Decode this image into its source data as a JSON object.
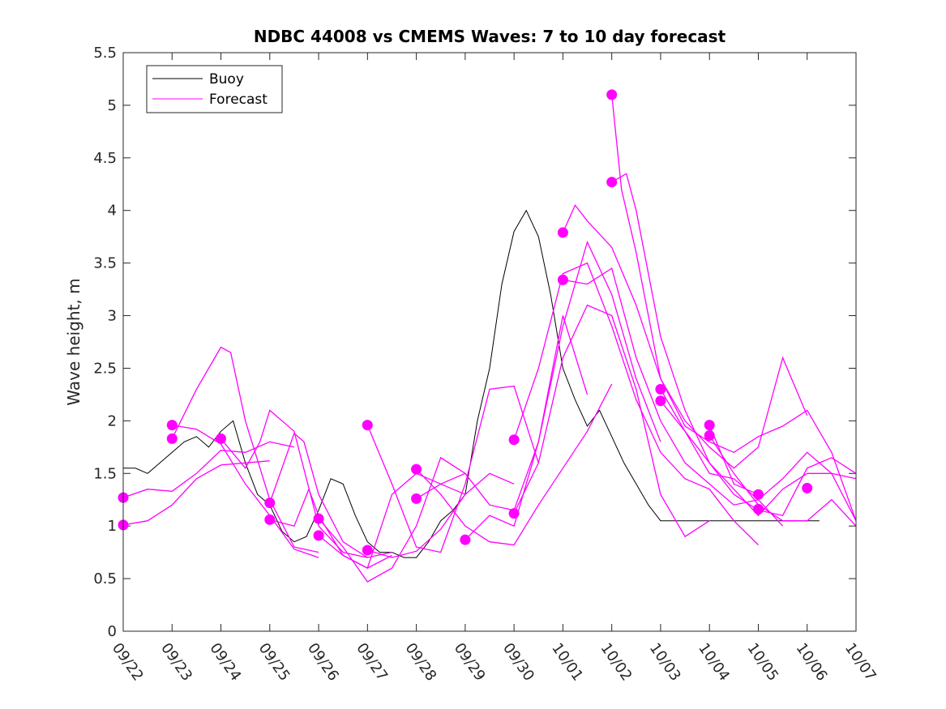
{
  "chart_data": {
    "type": "line",
    "title": "NDBC 44008 vs CMEMS Waves: 7 to 10 day forecast",
    "xlabel": "",
    "ylabel": "Wave height, m",
    "xlim": [
      0,
      15
    ],
    "ylim": [
      0,
      5.5
    ],
    "yticks": [
      0,
      0.5,
      1,
      1.5,
      2,
      2.5,
      3,
      3.5,
      4,
      4.5,
      5,
      5.5
    ],
    "ytick_labels": [
      "0",
      "0.5",
      "1",
      "1.5",
      "2",
      "2.5",
      "3",
      "3.5",
      "4",
      "4.5",
      "5",
      "5.5"
    ],
    "xtick_labels": [
      "09/22",
      "09/23",
      "09/24",
      "09/25",
      "09/26",
      "09/27",
      "09/28",
      "09/29",
      "09/30",
      "10/01",
      "10/02",
      "10/03",
      "10/04",
      "10/05",
      "10/06",
      "10/07"
    ],
    "legend": {
      "position": "top-left",
      "entries": [
        {
          "label": "Buoy",
          "color": "#000000"
        },
        {
          "label": "Forecast",
          "color": "#ff00ff"
        }
      ]
    },
    "buoy": {
      "name": "Buoy",
      "color": "#000000",
      "x": [
        0,
        0.25,
        0.5,
        0.75,
        1,
        1.25,
        1.5,
        1.75,
        2,
        2.25,
        2.5,
        2.75,
        3,
        3.25,
        3.5,
        3.75,
        4,
        4.25,
        4.5,
        4.75,
        5,
        5.25,
        5.5,
        5.75,
        6,
        6.25,
        6.5,
        6.75,
        7,
        7.25,
        7.5,
        7.75,
        8,
        8.25,
        8.5,
        8.75,
        9,
        9.25,
        9.5,
        9.75,
        10,
        10.25,
        10.5,
        10.75,
        11,
        11.25,
        11.5,
        11.75,
        12,
        12.25,
        12.5,
        12.75,
        13,
        13.25,
        13.5,
        13.75,
        14,
        14.25
      ],
      "values": [
        1.55,
        1.55,
        1.5,
        1.6,
        1.7,
        1.8,
        1.85,
        1.75,
        1.9,
        2.0,
        1.6,
        1.3,
        1.2,
        0.95,
        0.85,
        0.9,
        1.15,
        1.45,
        1.4,
        1.1,
        0.85,
        0.75,
        0.75,
        0.7,
        0.7,
        0.85,
        1.05,
        1.15,
        1.3,
        2.0,
        2.5,
        3.3,
        3.8,
        4.0,
        3.75,
        3.2,
        2.5,
        2.2,
        1.95,
        2.1,
        1.85,
        1.6,
        1.4,
        1.2,
        1.05,
        1.05,
        1.05,
        1.05,
        1.05,
        1.05,
        1.05,
        1.05,
        1.05,
        1.05,
        1.05,
        1.05,
        1.05,
        1.05
      ]
    },
    "forecast_series": [
      {
        "name": "Forecast",
        "marker": [
          0,
          1.01
        ],
        "x": [
          0,
          0.5,
          1,
          1.5,
          2,
          2.5,
          3
        ],
        "values": [
          1.01,
          1.05,
          1.2,
          1.45,
          1.58,
          1.6,
          1.62
        ]
      },
      {
        "name": "Forecast",
        "marker": [
          0,
          1.27
        ],
        "x": [
          0,
          0.5,
          1,
          1.5,
          2,
          2.5,
          3,
          3.5
        ],
        "values": [
          1.27,
          1.35,
          1.33,
          1.5,
          1.72,
          1.7,
          1.8,
          1.75
        ]
      },
      {
        "name": "Forecast",
        "marker": [
          1,
          1.83
        ],
        "x": [
          1,
          1.5,
          2,
          2.2,
          2.5,
          3,
          3.5,
          4
        ],
        "values": [
          1.83,
          2.3,
          2.7,
          2.65,
          2.0,
          1.25,
          0.8,
          0.75
        ]
      },
      {
        "name": "Forecast",
        "marker": [
          1,
          1.96
        ],
        "x": [
          1,
          1.5,
          2,
          2.5,
          3,
          3.5,
          4
        ],
        "values": [
          1.96,
          1.92,
          1.78,
          1.4,
          1.1,
          0.78,
          0.7
        ]
      },
      {
        "name": "Forecast",
        "marker": [
          2,
          1.83
        ],
        "x": [
          2,
          2.5,
          2.8,
          3,
          3.5,
          4,
          4.5,
          5
        ],
        "values": [
          1.83,
          1.55,
          1.8,
          2.1,
          1.9,
          1.0,
          0.75,
          0.7
        ]
      },
      {
        "name": "Forecast",
        "marker": [
          3,
          1.06
        ],
        "x": [
          3,
          3.5,
          3.8,
          4,
          4.5,
          5,
          5.5
        ],
        "values": [
          1.06,
          1.0,
          1.35,
          1.1,
          0.72,
          0.6,
          0.72
        ]
      },
      {
        "name": "Forecast",
        "marker": [
          3,
          1.22
        ],
        "x": [
          3,
          3.5,
          3.7,
          4,
          4.5,
          5,
          5.5
        ],
        "values": [
          1.22,
          1.88,
          1.8,
          1.3,
          0.85,
          0.7,
          0.75
        ]
      },
      {
        "name": "Forecast",
        "marker": [
          4,
          0.91
        ],
        "x": [
          4,
          4.5,
          5,
          5.5,
          6,
          6.5,
          7
        ],
        "values": [
          0.91,
          0.72,
          0.6,
          1.3,
          1.5,
          1.4,
          1.3
        ]
      },
      {
        "name": "Forecast",
        "marker": [
          4,
          1.07
        ],
        "x": [
          4,
          4.5,
          5,
          5.5,
          6,
          6.5,
          7
        ],
        "values": [
          1.07,
          0.8,
          0.47,
          0.6,
          1.0,
          1.65,
          1.5
        ]
      },
      {
        "name": "Forecast",
        "marker": [
          5,
          0.77
        ],
        "x": [
          5,
          5.5,
          6,
          6.5,
          7,
          7.5,
          8
        ],
        "values": [
          0.77,
          0.7,
          0.76,
          0.97,
          1.3,
          1.5,
          1.4
        ]
      },
      {
        "name": "Forecast",
        "marker": [
          5,
          1.96
        ],
        "x": [
          5,
          5.5,
          6,
          6.5,
          7,
          7.5,
          8,
          8.5
        ],
        "values": [
          1.96,
          1.4,
          0.8,
          0.75,
          1.4,
          2.3,
          2.33,
          1.6
        ]
      },
      {
        "name": "Forecast",
        "marker": [
          6,
          1.26
        ],
        "x": [
          6,
          6.5,
          7,
          7.5,
          8,
          8.5,
          9,
          9.5
        ],
        "values": [
          1.26,
          1.4,
          1.5,
          1.2,
          1.15,
          1.8,
          3.0,
          2.25
        ]
      },
      {
        "name": "Forecast",
        "marker": [
          6,
          1.54
        ],
        "x": [
          6,
          6.5,
          7,
          7.5,
          8,
          8.5,
          9,
          9.5,
          10
        ],
        "values": [
          1.54,
          1.3,
          1.0,
          0.85,
          0.82,
          1.2,
          1.55,
          1.9,
          2.35
        ]
      },
      {
        "name": "Forecast",
        "marker": [
          7,
          0.87
        ],
        "x": [
          7,
          7.5,
          8,
          8.5,
          9,
          9.5,
          10,
          10.5,
          11
        ],
        "values": [
          0.87,
          1.1,
          1.0,
          1.8,
          2.9,
          3.7,
          3.2,
          2.4,
          1.8
        ]
      },
      {
        "name": "Forecast",
        "marker": [
          8,
          1.12
        ],
        "x": [
          8,
          8.5,
          9,
          9.5,
          10,
          10.5,
          11,
          11.5,
          12
        ],
        "values": [
          1.12,
          1.6,
          2.6,
          3.1,
          3.0,
          2.3,
          1.3,
          0.9,
          1.05
        ]
      },
      {
        "name": "Forecast",
        "marker": [
          8,
          1.82
        ],
        "x": [
          8,
          8.5,
          9,
          9.5,
          10,
          10.5,
          11,
          11.5,
          12,
          12.5,
          13
        ],
        "values": [
          1.82,
          2.5,
          3.4,
          3.5,
          2.9,
          2.2,
          1.7,
          1.45,
          1.35,
          1.05,
          0.82
        ]
      },
      {
        "name": "Forecast",
        "marker": [
          9,
          3.34
        ],
        "x": [
          9,
          9.5,
          10,
          10.5,
          11,
          11.5,
          12,
          12.5,
          13,
          13.5
        ],
        "values": [
          3.34,
          3.3,
          3.45,
          2.6,
          2.0,
          1.6,
          1.4,
          1.2,
          1.25,
          1.0
        ]
      },
      {
        "name": "Forecast",
        "marker": [
          9,
          3.79
        ],
        "x": [
          9,
          9.25,
          9.5,
          10,
          10.5,
          11,
          11.5,
          12,
          12.5,
          13,
          13.5,
          14
        ],
        "values": [
          3.79,
          4.05,
          3.9,
          3.65,
          3.1,
          2.4,
          2.0,
          1.75,
          1.55,
          1.75,
          2.6,
          2.05
        ]
      },
      {
        "name": "Forecast",
        "marker": [
          10,
          4.27
        ],
        "x": [
          10,
          10.3,
          10.5,
          11,
          11.5,
          12,
          12.5,
          13,
          13.5,
          14,
          14.5,
          15
        ],
        "values": [
          4.27,
          4.35,
          4.0,
          2.8,
          2.1,
          1.6,
          1.35,
          1.1,
          1.35,
          1.5,
          1.5,
          1.45
        ]
      },
      {
        "name": "Forecast",
        "marker": [
          10,
          5.1
        ],
        "x": [
          10,
          10.2,
          10.5,
          11,
          11.5,
          12,
          12.5,
          13,
          13.5,
          14,
          14.5,
          15
        ],
        "values": [
          5.1,
          4.2,
          3.6,
          2.4,
          1.95,
          1.8,
          1.7,
          1.85,
          1.95,
          2.1,
          1.7,
          1.05
        ]
      },
      {
        "name": "Forecast",
        "marker": [
          11,
          2.19
        ],
        "x": [
          11,
          11.5,
          12,
          12.5,
          13,
          13.5,
          14,
          14.5,
          15
        ],
        "values": [
          2.19,
          1.9,
          1.6,
          1.3,
          1.15,
          1.1,
          1.55,
          1.65,
          1.5
        ]
      },
      {
        "name": "Forecast",
        "marker": [
          11,
          2.3
        ],
        "x": [
          11,
          11.5,
          12,
          12.5,
          13,
          13.5,
          14,
          14.5,
          15
        ],
        "values": [
          2.3,
          1.9,
          1.5,
          1.45,
          1.25,
          1.45,
          1.7,
          1.5,
          1.05
        ]
      },
      {
        "name": "Forecast",
        "marker": [
          12,
          1.86
        ],
        "x": [
          12,
          12.5,
          13,
          13.5,
          14,
          14.5,
          15
        ],
        "values": [
          1.86,
          1.5,
          1.2,
          1.05,
          1.05,
          1.25,
          1.0
        ]
      },
      {
        "name": "Forecast",
        "marker": [
          12,
          1.96
        ],
        "x": [
          12,
          12.5,
          13
        ],
        "values": [
          1.96,
          1.4,
          1.3
        ]
      },
      {
        "name": "Forecast",
        "marker": [
          13,
          1.16
        ],
        "x": [
          13
        ],
        "values": [
          1.16
        ]
      },
      {
        "name": "Forecast",
        "marker": [
          13,
          1.3
        ],
        "x": [
          13
        ],
        "values": [
          1.3
        ]
      },
      {
        "name": "Forecast",
        "marker": [
          14,
          1.36
        ],
        "x": [
          14
        ],
        "values": [
          1.36
        ]
      }
    ]
  }
}
